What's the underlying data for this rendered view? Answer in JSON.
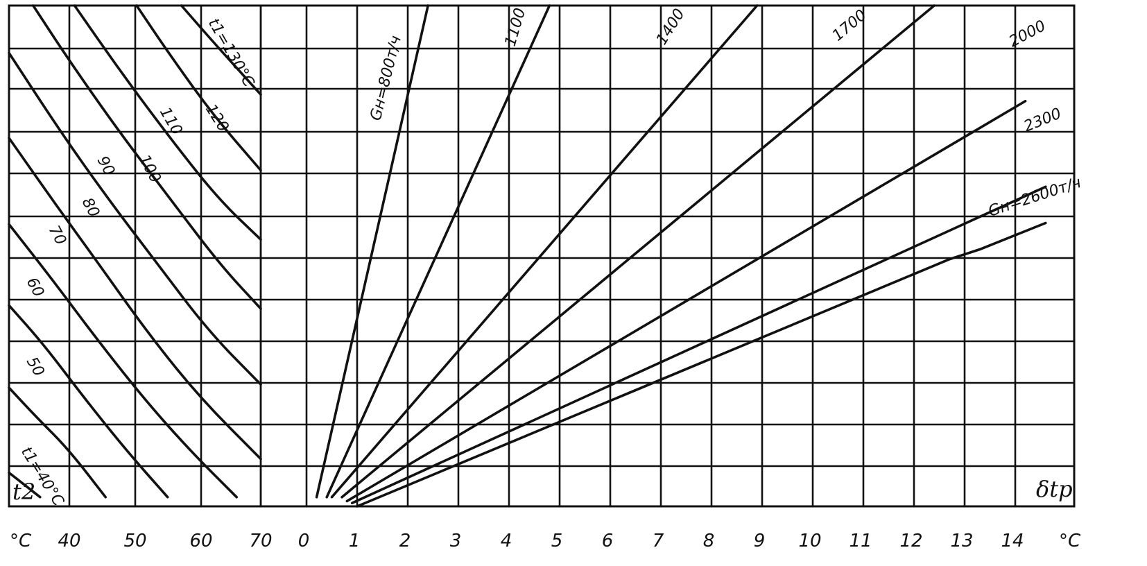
{
  "chart_data": [
    {
      "type": "line",
      "panel": "left",
      "xlabel": "t2",
      "x_unit": "°C",
      "x_ticks": [
        "40",
        "50",
        "60",
        "70"
      ],
      "xlim": [
        33,
        70
      ],
      "series": [
        {
          "name": "t1=40°C",
          "label": "t1=40°C",
          "points": [
            [
              33.5,
              51
            ],
            [
              38.0,
              14
            ]
          ]
        },
        {
          "name": "50",
          "label": "50",
          "points": [
            [
              33.5,
              180
            ],
            [
              37.5,
              135
            ],
            [
              42.0,
              88
            ],
            [
              47.5,
              14
            ]
          ]
        },
        {
          "name": "60",
          "label": "60",
          "points": [
            [
              33.5,
              305
            ],
            [
              38.5,
              246
            ],
            [
              44.0,
              170
            ],
            [
              50.5,
              85
            ],
            [
              56.5,
              14
            ]
          ]
        },
        {
          "name": "70",
          "label": "70",
          "points": [
            [
              33.5,
              428
            ],
            [
              39.5,
              348
            ],
            [
              46.5,
              250
            ],
            [
              53.5,
              158
            ],
            [
              60.0,
              82
            ],
            [
              66.5,
              14
            ]
          ]
        },
        {
          "name": "80",
          "label": "80",
          "points": [
            [
              33.5,
              559
            ],
            [
              40.0,
              462
            ],
            [
              46.5,
              368
            ],
            [
              53.5,
              265
            ],
            [
              61.0,
              167
            ],
            [
              70.0,
              72
            ]
          ]
        },
        {
          "name": "90",
          "label": "90",
          "points": [
            [
              33.5,
              688
            ],
            [
              41.0,
              568
            ],
            [
              47.5,
              472
            ],
            [
              55.0,
              368
            ],
            [
              62.5,
              265
            ],
            [
              70.0,
              185
            ]
          ]
        },
        {
          "name": "100",
          "label": "100",
          "points": [
            [
              37.0,
              760
            ],
            [
              42.0,
              680
            ],
            [
              49.5,
              568
            ],
            [
              56.5,
              472
            ],
            [
              64.0,
              368
            ],
            [
              70.0,
              300
            ]
          ]
        },
        {
          "name": "110",
          "label": "110",
          "points": [
            [
              43.0,
              760
            ],
            [
              50.0,
              655
            ],
            [
              57.5,
              550
            ],
            [
              64.0,
              465
            ],
            [
              70.0,
              405
            ]
          ]
        },
        {
          "name": "120",
          "label": "120",
          "points": [
            [
              52.0,
              760
            ],
            [
              56.5,
              690
            ],
            [
              63.0,
              595
            ],
            [
              70.0,
              510
            ]
          ]
        },
        {
          "name": "t1=130°C",
          "label": "t1=130°C",
          "points": [
            [
              58.5,
              760
            ],
            [
              63.5,
              700
            ],
            [
              70.0,
              625
            ]
          ]
        }
      ]
    },
    {
      "type": "line",
      "panel": "right",
      "xlabel": "δtp",
      "x_unit": "°C",
      "x_ticks": [
        "0",
        "1",
        "2",
        "3",
        "4",
        "5",
        "6",
        "7",
        "8",
        "9",
        "10",
        "11",
        "12",
        "13",
        "14"
      ],
      "xlim": [
        -1,
        15
      ],
      "series": [
        {
          "name": "Gн=800т/ч",
          "label": "Gн=800т/ч",
          "points": [
            [
              0.2,
              14
            ],
            [
              2.4,
              760
            ]
          ]
        },
        {
          "name": "1100",
          "label": "1100",
          "points": [
            [
              0.4,
              14
            ],
            [
              4.8,
              760
            ]
          ]
        },
        {
          "name": "1400",
          "label": "1400",
          "points": [
            [
              0.5,
              14
            ],
            [
              8.9,
              760
            ]
          ]
        },
        {
          "name": "1700",
          "label": "1700",
          "points": [
            [
              0.7,
              14
            ],
            [
              12.4,
              760
            ]
          ]
        },
        {
          "name": "2000",
          "label": "2000",
          "points": [
            [
              0.8,
              8
            ],
            [
              14.2,
              615
            ]
          ]
        },
        {
          "name": "2300",
          "label": "2300",
          "points": [
            [
              0.9,
              5
            ],
            [
              14.6,
              485
            ]
          ]
        },
        {
          "name": "Gн=2600т/ч",
          "label": "Gн=2600т/ч",
          "points": [
            [
              1.0,
              0
            ],
            [
              12.7,
              375
            ],
            [
              13.3,
              390
            ],
            [
              14.6,
              430
            ]
          ]
        }
      ]
    }
  ]
}
